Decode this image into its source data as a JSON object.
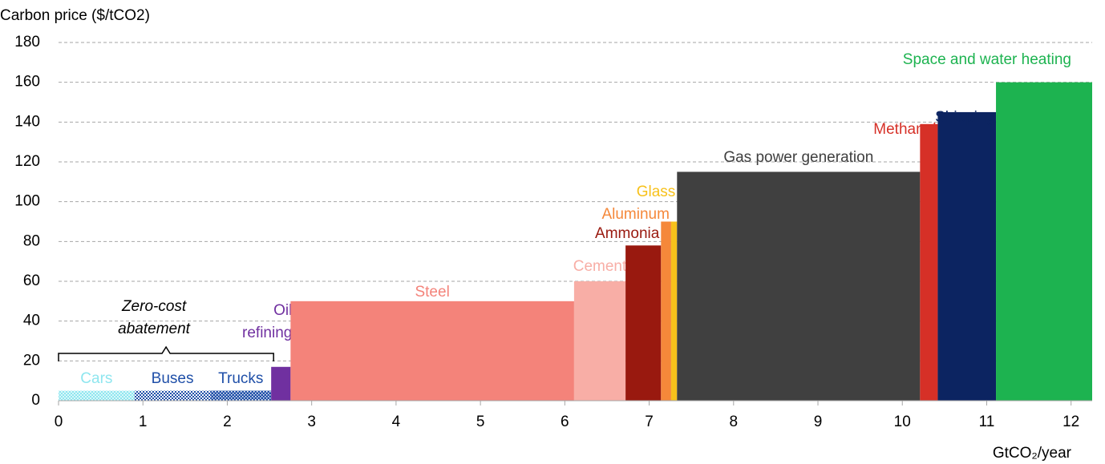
{
  "chart_data": {
    "type": "cost_curve",
    "y_label": "Carbon price ($/tCO2)",
    "x_label": "GtCO₂/year",
    "annotation": [
      "Zero-cost",
      "abatement"
    ],
    "xlim": [
      0,
      12.25
    ],
    "xticks": [
      0,
      1,
      2,
      3,
      4,
      5,
      6,
      7,
      8,
      9,
      10,
      11,
      12
    ],
    "ylim": [
      0,
      180
    ],
    "yticks": [
      0,
      20,
      40,
      60,
      80,
      100,
      120,
      140,
      160,
      180
    ],
    "grid": true,
    "segments": [
      {
        "name": "Cars",
        "color": "#8fe6ef",
        "pattern": true,
        "start": 0,
        "end": 0.9,
        "value": 5
      },
      {
        "name": "Buses",
        "color": "#1f4fa8",
        "pattern": true,
        "start": 0.9,
        "end": 1.8,
        "value": 5
      },
      {
        "name": "Trucks",
        "color": "#1f4fa8",
        "pattern": true,
        "start": 1.8,
        "end": 2.52,
        "value": 5
      },
      {
        "name": [
          "Oil",
          "refining"
        ],
        "color": "#7030a0",
        "start": 2.52,
        "end": 2.75,
        "value": 17
      },
      {
        "name": "Steel",
        "color": "#f4837a",
        "start": 2.75,
        "end": 6.11,
        "value": 50
      },
      {
        "name": "Cement",
        "color": "#f8aea6",
        "start": 6.11,
        "end": 6.72,
        "value": 60
      },
      {
        "name": "Ammonia",
        "color": "#99190f",
        "start": 6.72,
        "end": 7.14,
        "value": 78
      },
      {
        "name": "Aluminum",
        "color": "#f5883a",
        "start": 7.14,
        "end": 7.26,
        "value": 90
      },
      {
        "name": "Glass",
        "color": "#f7c11b",
        "start": 7.26,
        "end": 7.33,
        "value": 90
      },
      {
        "name": "Gas power generation",
        "color": "#404040",
        "start": 7.33,
        "end": 10.21,
        "value": 115
      },
      {
        "name": "Methanol",
        "color": "#d63027",
        "start": 10.21,
        "end": 10.42,
        "value": 139
      },
      {
        "name": "Shipping",
        "color": "#0c2461",
        "start": 10.42,
        "end": 11.11,
        "value": 145
      },
      {
        "name": "Space and water heating",
        "color": "#1db350",
        "start": 11.11,
        "end": 12.25,
        "value": 160
      }
    ]
  }
}
